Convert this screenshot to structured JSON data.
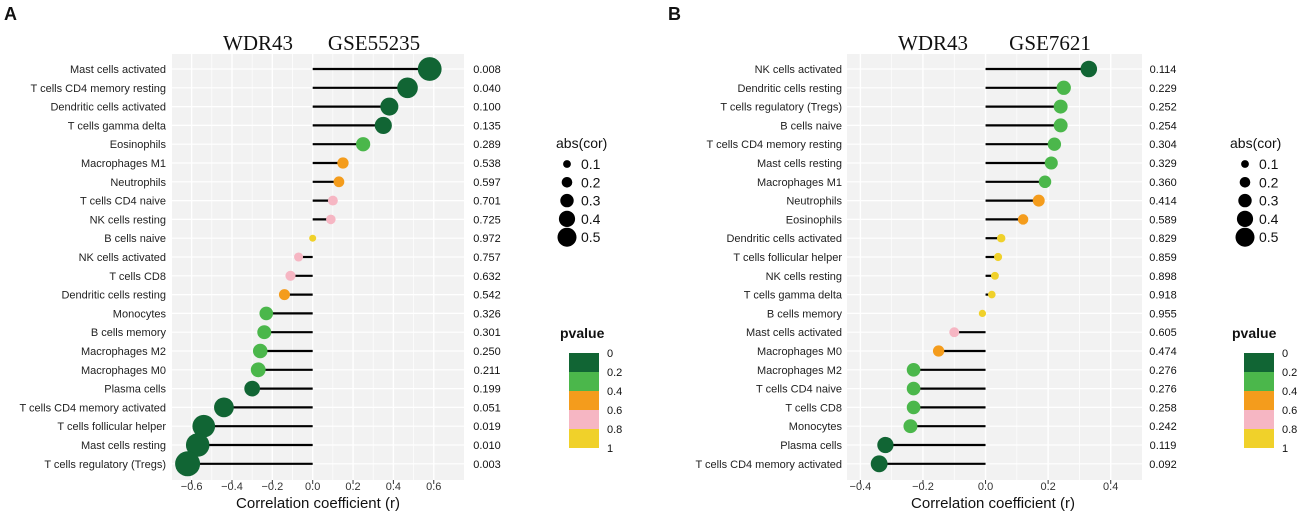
{
  "colors": {
    "p0": "#116534",
    "p2": "#4bb74b",
    "p4": "#f49c1c",
    "p6": "#f6b6c3",
    "p8": "#f0d12a",
    "significant": "#e0261e",
    "normal": "#111111",
    "panel_bg": "#f2f2f2"
  },
  "legend": {
    "size_title": "abs(cor)",
    "size_labels": [
      "0.1",
      "0.2",
      "0.3",
      "0.4",
      "0.5"
    ],
    "color_title": "pvalue",
    "color_labels": [
      "0",
      "0.2",
      "0.4",
      "0.6",
      "0.8",
      "1"
    ]
  },
  "chart_data": [
    {
      "type": "lollipop",
      "panel_label": "A",
      "gene": "WDR43",
      "dataset": "GSE55235",
      "xlabel": "Correlation coefficient (r)",
      "xlim": [
        -0.68,
        0.75
      ],
      "xticks": [
        -0.6,
        -0.4,
        -0.2,
        0.0,
        0.2,
        0.4,
        0.6
      ],
      "xtick_labels": [
        "−0.6",
        "−0.4",
        "−0.2",
        "0.0",
        "0.2",
        "0.4",
        "0.6"
      ],
      "categories": [
        "Mast cells activated",
        "T cells CD4 memory resting",
        "Dendritic cells activated",
        "T cells gamma delta",
        "Eosinophils",
        "Macrophages M1",
        "Neutrophils",
        "T cells CD4 naive",
        "NK cells resting",
        "B cells naive",
        "NK cells activated",
        "T cells CD8",
        "Dendritic cells resting",
        "Monocytes",
        "B cells memory",
        "Macrophages M2",
        "Macrophages M0",
        "Plasma cells",
        "T cells CD4 memory activated",
        "T cells follicular helper",
        "Mast cells resting",
        "T cells regulatory (Tregs)"
      ],
      "cor": [
        0.58,
        0.47,
        0.38,
        0.35,
        0.25,
        0.15,
        0.13,
        0.1,
        0.09,
        0.0,
        -0.07,
        -0.11,
        -0.14,
        -0.23,
        -0.24,
        -0.26,
        -0.27,
        -0.3,
        -0.44,
        -0.54,
        -0.57,
        -0.62
      ],
      "pvalues": [
        0.008,
        0.04,
        0.1,
        0.135,
        0.289,
        0.538,
        0.597,
        0.701,
        0.725,
        0.972,
        0.757,
        0.632,
        0.542,
        0.326,
        0.301,
        0.25,
        0.211,
        0.199,
        0.051,
        0.019,
        0.01,
        0.003
      ],
      "pvalue_labels": [
        "0.008",
        "0.040",
        "0.100",
        "0.135",
        "0.289",
        "0.538",
        "0.597",
        "0.701",
        "0.725",
        "0.972",
        "0.757",
        "0.632",
        "0.542",
        "0.326",
        "0.301",
        "0.250",
        "0.211",
        "0.199",
        "0.051",
        "0.019",
        "0.010",
        "0.003"
      ]
    },
    {
      "type": "lollipop",
      "panel_label": "B",
      "gene": "WDR43",
      "dataset": "GSE7621",
      "xlabel": "Correlation coefficient (r)",
      "xlim": [
        -0.43,
        0.5
      ],
      "xticks": [
        -0.4,
        -0.2,
        0.0,
        0.2,
        0.4
      ],
      "xtick_labels": [
        "−0.4",
        "−0.2",
        "0.0",
        "0.2",
        "0.4"
      ],
      "categories": [
        "NK cells activated",
        "Dendritic cells resting",
        "T cells regulatory (Tregs)",
        "B cells naive",
        "T cells CD4 memory resting",
        "Mast cells resting",
        "Macrophages M1",
        "Neutrophils",
        "Eosinophils",
        "Dendritic cells activated",
        "T cells follicular helper",
        "NK cells resting",
        "T cells gamma delta",
        "B cells memory",
        "Mast cells activated",
        "Macrophages M0",
        "Macrophages M2",
        "T cells CD4 naive",
        "T cells CD8",
        "Monocytes",
        "Plasma cells",
        "T cells CD4 memory activated"
      ],
      "cor": [
        0.33,
        0.25,
        0.24,
        0.24,
        0.22,
        0.21,
        0.19,
        0.17,
        0.12,
        0.05,
        0.04,
        0.03,
        0.02,
        -0.01,
        -0.1,
        -0.15,
        -0.23,
        -0.23,
        -0.23,
        -0.24,
        -0.32,
        -0.34
      ],
      "pvalues": [
        0.114,
        0.229,
        0.252,
        0.254,
        0.304,
        0.329,
        0.36,
        0.414,
        0.589,
        0.829,
        0.859,
        0.898,
        0.918,
        0.955,
        0.605,
        0.474,
        0.276,
        0.276,
        0.258,
        0.242,
        0.119,
        0.092
      ],
      "pvalue_labels": [
        "0.114",
        "0.229",
        "0.252",
        "0.254",
        "0.304",
        "0.329",
        "0.360",
        "0.414",
        "0.589",
        "0.829",
        "0.859",
        "0.898",
        "0.918",
        "0.955",
        "0.605",
        "0.474",
        "0.276",
        "0.276",
        "0.258",
        "0.242",
        "0.119",
        "0.092"
      ]
    }
  ]
}
